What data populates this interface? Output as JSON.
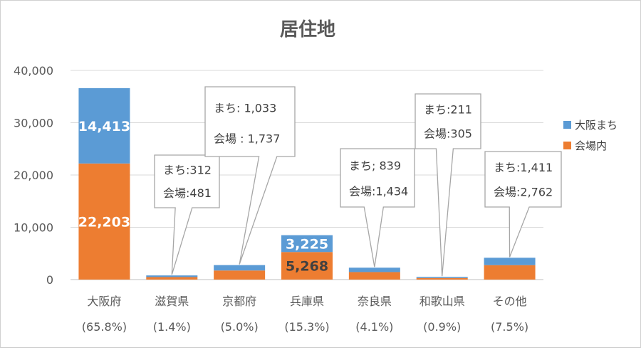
{
  "chart_data": {
    "type": "bar",
    "stacked": true,
    "title": "居住地",
    "categories": [
      "大阪府",
      "滋賀県",
      "京都府",
      "兵庫県",
      "奈良県",
      "和歌山県",
      "その他"
    ],
    "category_percentages": [
      "(65.8%)",
      "(1.4%)",
      "(5.0%)",
      "(15.3%)",
      "(4.1%)",
      "(0.9%)",
      "(7.5%)"
    ],
    "series": [
      {
        "name": "会場内",
        "color": "#ED7D31",
        "values": [
          22203,
          481,
          1737,
          5268,
          1434,
          305,
          2762
        ]
      },
      {
        "name": "大阪まち",
        "color": "#5B9BD5",
        "values": [
          14413,
          312,
          1033,
          3225,
          839,
          211,
          1411
        ]
      }
    ],
    "data_labels": [
      {
        "category": "大阪府",
        "series": "大阪まち",
        "text": "14,413"
      },
      {
        "category": "大阪府",
        "series": "会場内",
        "text": "22,203"
      },
      {
        "category": "兵庫県",
        "series": "大阪まち",
        "text": "3,225"
      },
      {
        "category": "兵庫県",
        "series": "会場内",
        "text": "5,268"
      }
    ],
    "callouts": [
      {
        "category": "滋賀県",
        "line1": "まち:312",
        "line2": "会場:481"
      },
      {
        "category": "京都府",
        "line1": "まち: 1,033",
        "line2": "会場 : 1,737"
      },
      {
        "category": "奈良県",
        "line1": "まち; 839",
        "line2": "会場:1,434"
      },
      {
        "category": "和歌山県",
        "line1": "まち:211",
        "line2": "会場:305"
      },
      {
        "category": "その他",
        "line1": "まち:1,411",
        "line2": "会場:2,762"
      }
    ],
    "yticks": [
      "0",
      "10,000",
      "20,000",
      "30,000",
      "40,000"
    ],
    "ylim": [
      0,
      40000
    ],
    "grid": true,
    "legend": "right",
    "legend_entries": [
      "大阪まち",
      "会場内"
    ]
  }
}
